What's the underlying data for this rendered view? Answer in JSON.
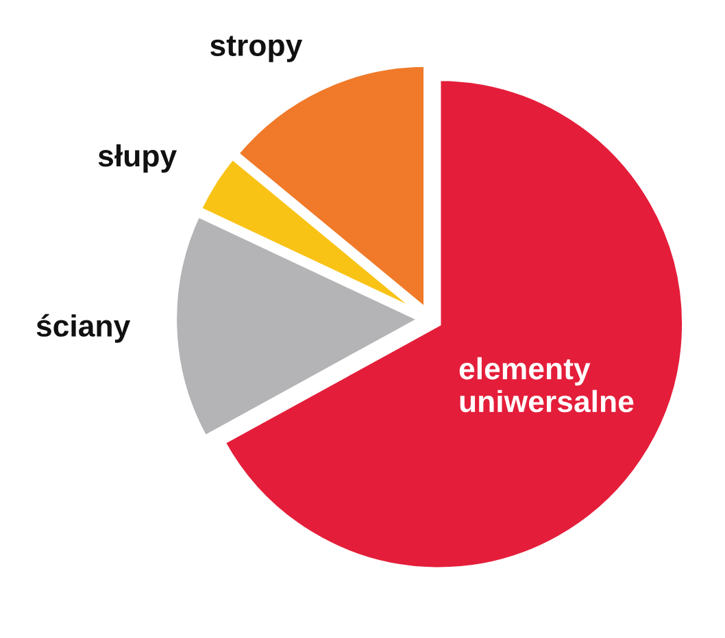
{
  "chart_data": {
    "type": "pie",
    "categories": [
      "elementy uniwersalne",
      "ściany",
      "słupy",
      "stropy"
    ],
    "values": [
      67,
      15,
      4,
      14
    ],
    "colors": [
      "#e41e3a",
      "#b4b4b6",
      "#f9c316",
      "#f07a2a"
    ]
  }
}
